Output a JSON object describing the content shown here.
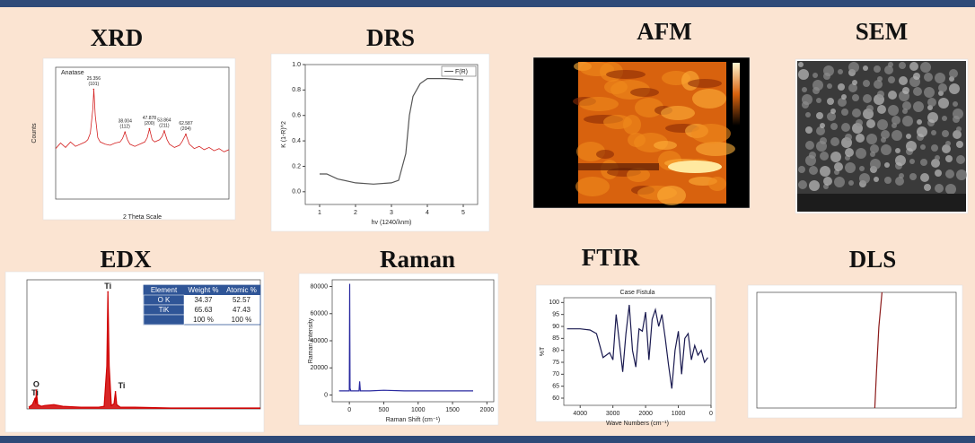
{
  "chart_data": [
    {
      "type": "line",
      "title": "XRD",
      "label": "Anatase",
      "x_label": "2 Theta Scale",
      "y_label": "Counts",
      "color": "#d42020",
      "x": [
        10,
        12,
        14,
        16,
        18,
        20,
        22,
        23,
        24,
        25,
        25.4,
        26,
        27,
        28,
        30,
        32,
        34,
        36,
        37,
        38,
        39,
        40,
        42,
        44,
        46,
        47,
        47.9,
        49,
        50,
        52,
        53,
        53.9,
        55,
        56,
        58,
        60,
        61,
        62.6,
        64,
        66,
        68,
        70,
        72,
        74,
        76,
        78,
        80
      ],
      "values": [
        460,
        510,
        470,
        520,
        480,
        500,
        520,
        540,
        600,
        820,
        1000,
        760,
        560,
        520,
        500,
        490,
        510,
        520,
        550,
        610,
        540,
        500,
        480,
        500,
        520,
        560,
        640,
        540,
        520,
        540,
        570,
        620,
        540,
        500,
        470,
        490,
        520,
        590,
        500,
        460,
        480,
        450,
        470,
        440,
        460,
        430,
        450
      ],
      "xlim": [
        10,
        80
      ],
      "ylim": [
        0,
        1200
      ],
      "peaks": [
        {
          "x": 25.356,
          "y": 1000,
          "hkl": "(101)"
        },
        {
          "x": 38.004,
          "y": 610,
          "hkl": "(112)"
        },
        {
          "x": 47.878,
          "y": 640,
          "hkl": "(200)"
        },
        {
          "x": 53.864,
          "y": 620,
          "hkl": "(211)"
        },
        {
          "x": 62.587,
          "y": 590,
          "hkl": "(204)"
        }
      ]
    },
    {
      "type": "line",
      "title": "DRS",
      "x_label": "hv (1240/λnm)",
      "y_label": "K (1-R)^2",
      "legend": "F(R)",
      "color": "#555555",
      "x": [
        1,
        1.2,
        1.5,
        2,
        2.5,
        3,
        3.2,
        3.4,
        3.5,
        3.6,
        3.8,
        4,
        4.5,
        5
      ],
      "values": [
        0.14,
        0.14,
        0.1,
        0.07,
        0.06,
        0.07,
        0.09,
        0.3,
        0.6,
        0.75,
        0.85,
        0.89,
        0.89,
        0.88
      ],
      "xlim": [
        0.6,
        5.4
      ],
      "ylim": [
        -0.1,
        1.0
      ],
      "xticks": [
        1,
        2,
        3,
        4,
        5
      ],
      "yticks": [
        {
          "value": 0,
          "label": "0.0"
        },
        0.2,
        0.4,
        0.6,
        0.8,
        {
          "value": 1,
          "label": "1.0"
        }
      ]
    },
    {
      "type": "image",
      "title": "AFM"
    },
    {
      "type": "image",
      "title": "SEM"
    },
    {
      "type": "line",
      "title": "EDX",
      "color": "#d00000",
      "x": [
        0.1,
        0.3,
        0.45,
        0.5,
        0.52,
        0.6,
        0.8,
        1,
        1.5,
        2,
        3,
        4,
        4.3,
        4.45,
        4.51,
        4.58,
        4.7,
        4.85,
        4.93,
        5.0,
        5.2,
        6,
        8,
        10,
        13
      ],
      "values": [
        0.02,
        0.05,
        0.12,
        0.06,
        0.22,
        0.05,
        0.03,
        0.04,
        0.05,
        0.03,
        0.02,
        0.02,
        0.03,
        0.5,
        1.36,
        0.5,
        0.04,
        0.06,
        0.2,
        0.05,
        0.02,
        0.02,
        0.01,
        0.01,
        0.01
      ],
      "xlim": [
        0,
        13
      ],
      "ylim": [
        0,
        1.5
      ],
      "peaks": [
        {
          "x": 0.45,
          "y": 0.12,
          "label": "Ti"
        },
        {
          "x": 0.52,
          "y": 0.22,
          "label": "O"
        },
        {
          "x": 4.51,
          "y": 1.36,
          "label": "Ti"
        },
        {
          "x": 4.93,
          "y": 0.2,
          "label": "Ti"
        }
      ],
      "table": {
        "header": [
          "Element",
          "Weight %",
          "Atomic %"
        ],
        "rows": [
          [
            "O K",
            "34.37",
            "52.57"
          ],
          [
            "TiK",
            "65.63",
            "47.43"
          ]
        ],
        "total": [
          "100 %",
          "100 %"
        ]
      }
    },
    {
      "type": "line",
      "title": "Raman",
      "x_label": "Raman Shift (cm⁻¹)",
      "y_label": "Raman Intensity",
      "color": "#2a2aa0",
      "x": [
        -150,
        -50,
        0,
        5,
        10,
        20,
        60,
        100,
        140,
        150,
        160,
        200,
        300,
        500,
        800,
        1000,
        1500,
        1800
      ],
      "values": [
        3000,
        3000,
        3000,
        82000,
        5000,
        3000,
        3000,
        3000,
        3000,
        10000,
        3000,
        3000,
        3000,
        3500,
        3000,
        3000,
        3000,
        3000
      ],
      "xlim": [
        -250,
        2100
      ],
      "ylim": [
        -5000,
        85000
      ],
      "xticks": [
        0,
        500,
        1000,
        1500,
        2000
      ],
      "yticks": [
        0,
        20000,
        40000,
        60000,
        80000
      ]
    },
    {
      "type": "line",
      "title": "FTIR",
      "label": "Case Fistula",
      "x_label": "Wave Numbers (cm⁻¹)",
      "y_label": "%T",
      "color": "#1a1a50",
      "x": [
        4400,
        4000,
        3700,
        3500,
        3400,
        3300,
        3200,
        3100,
        3000,
        2900,
        2800,
        2700,
        2600,
        2500,
        2400,
        2300,
        2200,
        2100,
        2000,
        1900,
        1800,
        1700,
        1600,
        1500,
        1400,
        1300,
        1200,
        1100,
        1000,
        900,
        800,
        700,
        600,
        500,
        400,
        300,
        200,
        100
      ],
      "values": [
        89,
        89,
        88.5,
        87,
        82,
        77,
        78,
        79,
        76,
        95,
        83,
        71,
        87,
        99,
        80,
        73,
        89,
        88,
        96,
        76,
        93,
        97,
        90,
        95,
        85,
        74,
        64,
        80,
        88,
        70,
        85,
        87,
        76,
        82,
        78,
        80,
        75,
        77
      ],
      "xlim": [
        4500,
        0
      ],
      "ylim": [
        57,
        102
      ],
      "xticks": [
        4000,
        3000,
        2000,
        1000,
        0
      ],
      "yticks": [
        60,
        65,
        70,
        75,
        80,
        85,
        90,
        95,
        100
      ]
    },
    {
      "type": "line",
      "title": "DLS",
      "color": "#8b1a1a",
      "x": [
        148,
        150,
        153,
        157
      ],
      "values": [
        0,
        30,
        70,
        100
      ],
      "xlim": [
        0,
        250
      ],
      "ylim": [
        0,
        100
      ]
    }
  ]
}
